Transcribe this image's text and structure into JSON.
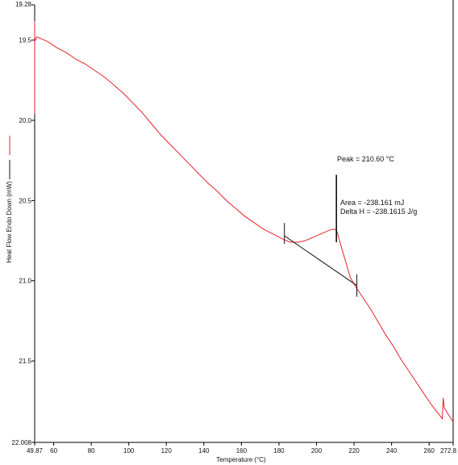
{
  "chart_data": {
    "type": "line",
    "title": "",
    "xlabel": "Temperature (°C)",
    "ylabel": "Heat Flow Endo Down (mW)",
    "xlim": [
      49.87,
      272.8
    ],
    "ylim": [
      19.28,
      22.008
    ],
    "y_inverted": true,
    "grid": false,
    "x_ticks": [
      {
        "value": 49.87,
        "label": "49.87"
      },
      {
        "value": 60,
        "label": "60"
      },
      {
        "value": 80,
        "label": "80"
      },
      {
        "value": 100,
        "label": "100"
      },
      {
        "value": 120,
        "label": "120"
      },
      {
        "value": 140,
        "label": "140"
      },
      {
        "value": 160,
        "label": "160"
      },
      {
        "value": 180,
        "label": "180"
      },
      {
        "value": 200,
        "label": "200"
      },
      {
        "value": 220,
        "label": "220"
      },
      {
        "value": 240,
        "label": "240"
      },
      {
        "value": 260,
        "label": "260"
      },
      {
        "value": 272.8,
        "label": "272.8"
      }
    ],
    "y_ticks": [
      {
        "value": 19.28,
        "label": "19.28"
      },
      {
        "value": 19.5,
        "label": "19.5"
      },
      {
        "value": 20.0,
        "label": "20.0"
      },
      {
        "value": 20.5,
        "label": "20.5"
      },
      {
        "value": 21.0,
        "label": "21.0"
      },
      {
        "value": 21.5,
        "label": "21.5"
      },
      {
        "value": 22.008,
        "label": "22.008"
      }
    ],
    "series": [
      {
        "color": "#e8212a",
        "x": [
          49.87,
          49.87,
          49.87,
          50.2,
          51.0,
          53,
          57,
          62,
          67,
          72,
          77,
          82,
          87,
          92,
          97,
          102,
          107,
          112,
          117,
          122,
          127,
          132,
          137,
          142,
          147,
          152,
          157,
          162,
          167,
          172,
          177,
          182,
          186,
          190,
          194,
          198,
          202,
          206,
          208,
          210.6,
          212,
          214,
          216,
          218,
          221,
          225,
          229,
          233,
          237,
          241,
          245,
          249,
          253,
          257,
          261,
          265,
          267,
          267.5,
          268,
          270,
          272.8
        ],
        "y": [
          19.96,
          19.38,
          19.48,
          19.5,
          19.48,
          19.49,
          19.51,
          19.55,
          19.58,
          19.62,
          19.65,
          19.69,
          19.73,
          19.78,
          19.83,
          19.89,
          19.95,
          20.02,
          20.09,
          20.15,
          20.21,
          20.27,
          20.33,
          20.39,
          20.44,
          20.5,
          20.55,
          20.6,
          20.64,
          20.68,
          20.71,
          20.74,
          20.76,
          20.76,
          20.75,
          20.73,
          20.71,
          20.69,
          20.68,
          20.68,
          20.74,
          20.82,
          20.9,
          20.98,
          21.04,
          21.11,
          21.18,
          21.26,
          21.34,
          21.41,
          21.49,
          21.56,
          21.63,
          21.7,
          21.77,
          21.83,
          21.86,
          21.73,
          21.79,
          21.83,
          21.88
        ]
      }
    ],
    "baseline": {
      "x": [
        182.9,
        221.5
      ],
      "y": [
        20.72,
        21.03
      ]
    },
    "markers": [
      {
        "x": 182.9,
        "y1": 20.64,
        "y2": 20.77
      },
      {
        "x": 221.5,
        "y1": 20.96,
        "y2": 21.1
      },
      {
        "x": 210.6,
        "y1": 20.34,
        "y2": 20.76
      }
    ],
    "legend": {
      "position": "left",
      "entries": [
        {
          "color": "#e8212a"
        },
        {
          "color": "#111111"
        }
      ]
    },
    "annotations": {
      "peak": "Peak = 210.60 °C",
      "area": "Area = -238.161 mJ",
      "delta_h": "Delta H = -238.1615 J/g"
    }
  }
}
